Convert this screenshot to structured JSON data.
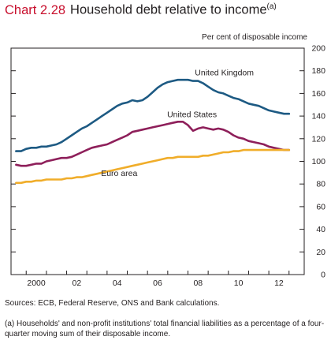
{
  "title": {
    "number": "Chart 2.28",
    "text": "Household debt relative to income",
    "note": "(a)"
  },
  "unit_label": "Per cent of disposable income",
  "sources": "Sources: ECB, Federal Reserve, ONS and Bank calculations.",
  "footnote": "(a) Households' and non-profit institutions' total financial liabilities as a percentage of a four-quarter moving sum of their disposable income.",
  "colors": {
    "uk": "#1d5a83",
    "us": "#8e1f5a",
    "euro": "#f0ad2a",
    "title_number": "#c8102e"
  },
  "chart_data": {
    "type": "line",
    "xlim": [
      1999.25,
      2013.75
    ],
    "ylim": [
      0,
      200
    ],
    "x_ticks": [
      "2000",
      "02",
      "04",
      "06",
      "08",
      "10",
      "12"
    ],
    "x_tick_values": [
      2000,
      2002,
      2004,
      2006,
      2008,
      2010,
      2012
    ],
    "y_ticks": [
      "0",
      "20",
      "40",
      "60",
      "80",
      "100",
      "120",
      "140",
      "160",
      "180",
      "200"
    ],
    "y_tick_values": [
      0,
      20,
      40,
      60,
      80,
      100,
      120,
      140,
      160,
      180,
      200
    ],
    "grid": false,
    "series": [
      {
        "name": "United Kingdom",
        "key": "uk",
        "x": [
          1999.5,
          1999.75,
          2000,
          2000.25,
          2000.5,
          2000.75,
          2001,
          2001.25,
          2001.5,
          2001.75,
          2002,
          2002.25,
          2002.5,
          2002.75,
          2003,
          2003.25,
          2003.5,
          2003.75,
          2004,
          2004.25,
          2004.5,
          2004.75,
          2005,
          2005.25,
          2005.5,
          2005.75,
          2006,
          2006.25,
          2006.5,
          2006.75,
          2007,
          2007.25,
          2007.5,
          2007.75,
          2008,
          2008.25,
          2008.5,
          2008.75,
          2009,
          2009.25,
          2009.5,
          2009.75,
          2010,
          2010.25,
          2010.5,
          2010.75,
          2011,
          2011.25,
          2011.5,
          2011.75,
          2012,
          2012.25,
          2012.5,
          2012.75,
          2013
        ],
        "values": [
          109,
          109,
          111,
          112,
          112,
          113,
          113,
          114,
          115,
          117,
          120,
          123,
          126,
          129,
          131,
          134,
          137,
          140,
          143,
          146,
          149,
          151,
          152,
          154,
          153,
          154,
          157,
          161,
          165,
          168,
          170,
          171,
          172,
          172,
          172,
          171,
          171,
          169,
          166,
          163,
          161,
          160,
          158,
          156,
          155,
          153,
          151,
          150,
          149,
          147,
          145,
          144,
          143,
          142,
          142
        ]
      },
      {
        "name": "United States",
        "key": "us",
        "x": [
          1999.5,
          1999.75,
          2000,
          2000.25,
          2000.5,
          2000.75,
          2001,
          2001.25,
          2001.5,
          2001.75,
          2002,
          2002.25,
          2002.5,
          2002.75,
          2003,
          2003.25,
          2003.5,
          2003.75,
          2004,
          2004.25,
          2004.5,
          2004.75,
          2005,
          2005.25,
          2005.5,
          2005.75,
          2006,
          2006.25,
          2006.5,
          2006.75,
          2007,
          2007.25,
          2007.5,
          2007.75,
          2008,
          2008.25,
          2008.5,
          2008.75,
          2009,
          2009.25,
          2009.5,
          2009.75,
          2010,
          2010.25,
          2010.5,
          2010.75,
          2011,
          2011.25,
          2011.5,
          2011.75,
          2012,
          2012.25,
          2012.5,
          2012.75,
          2013
        ],
        "values": [
          97,
          96,
          96,
          97,
          98,
          98,
          100,
          101,
          102,
          103,
          103,
          104,
          106,
          108,
          110,
          112,
          113,
          114,
          115,
          117,
          119,
          121,
          123,
          126,
          127,
          128,
          129,
          130,
          131,
          132,
          133,
          134,
          135,
          135,
          132,
          127,
          129,
          130,
          129,
          128,
          129,
          128,
          126,
          123,
          121,
          120,
          118,
          117,
          116,
          115,
          113,
          112,
          111,
          110,
          110
        ]
      },
      {
        "name": "Euro area",
        "key": "euro",
        "x": [
          1999.5,
          1999.75,
          2000,
          2000.25,
          2000.5,
          2000.75,
          2001,
          2001.25,
          2001.5,
          2001.75,
          2002,
          2002.25,
          2002.5,
          2002.75,
          2003,
          2003.25,
          2003.5,
          2003.75,
          2004,
          2004.25,
          2004.5,
          2004.75,
          2005,
          2005.25,
          2005.5,
          2005.75,
          2006,
          2006.25,
          2006.5,
          2006.75,
          2007,
          2007.25,
          2007.5,
          2007.75,
          2008,
          2008.25,
          2008.5,
          2008.75,
          2009,
          2009.25,
          2009.5,
          2009.75,
          2010,
          2010.25,
          2010.5,
          2010.75,
          2011,
          2011.25,
          2011.5,
          2011.75,
          2012,
          2012.25,
          2012.5,
          2012.75,
          2013
        ],
        "values": [
          81,
          81,
          82,
          82,
          83,
          83,
          84,
          84,
          84,
          84,
          85,
          85,
          86,
          86,
          87,
          88,
          89,
          90,
          91,
          92,
          93,
          94,
          95,
          96,
          97,
          98,
          99,
          100,
          101,
          102,
          103,
          103,
          104,
          104,
          104,
          104,
          104,
          105,
          105,
          106,
          107,
          108,
          108,
          109,
          109,
          110,
          110,
          110,
          110,
          110,
          110,
          110,
          110,
          110,
          110
        ]
      }
    ],
    "annotations": [
      {
        "text": "United Kingdom",
        "series": "uk",
        "x": 2009.8,
        "y": 176
      },
      {
        "text": "United States",
        "series": "us",
        "x": 2008.2,
        "y": 139
      },
      {
        "text": "Euro area",
        "series": "euro",
        "x": 2004.6,
        "y": 87
      }
    ]
  }
}
